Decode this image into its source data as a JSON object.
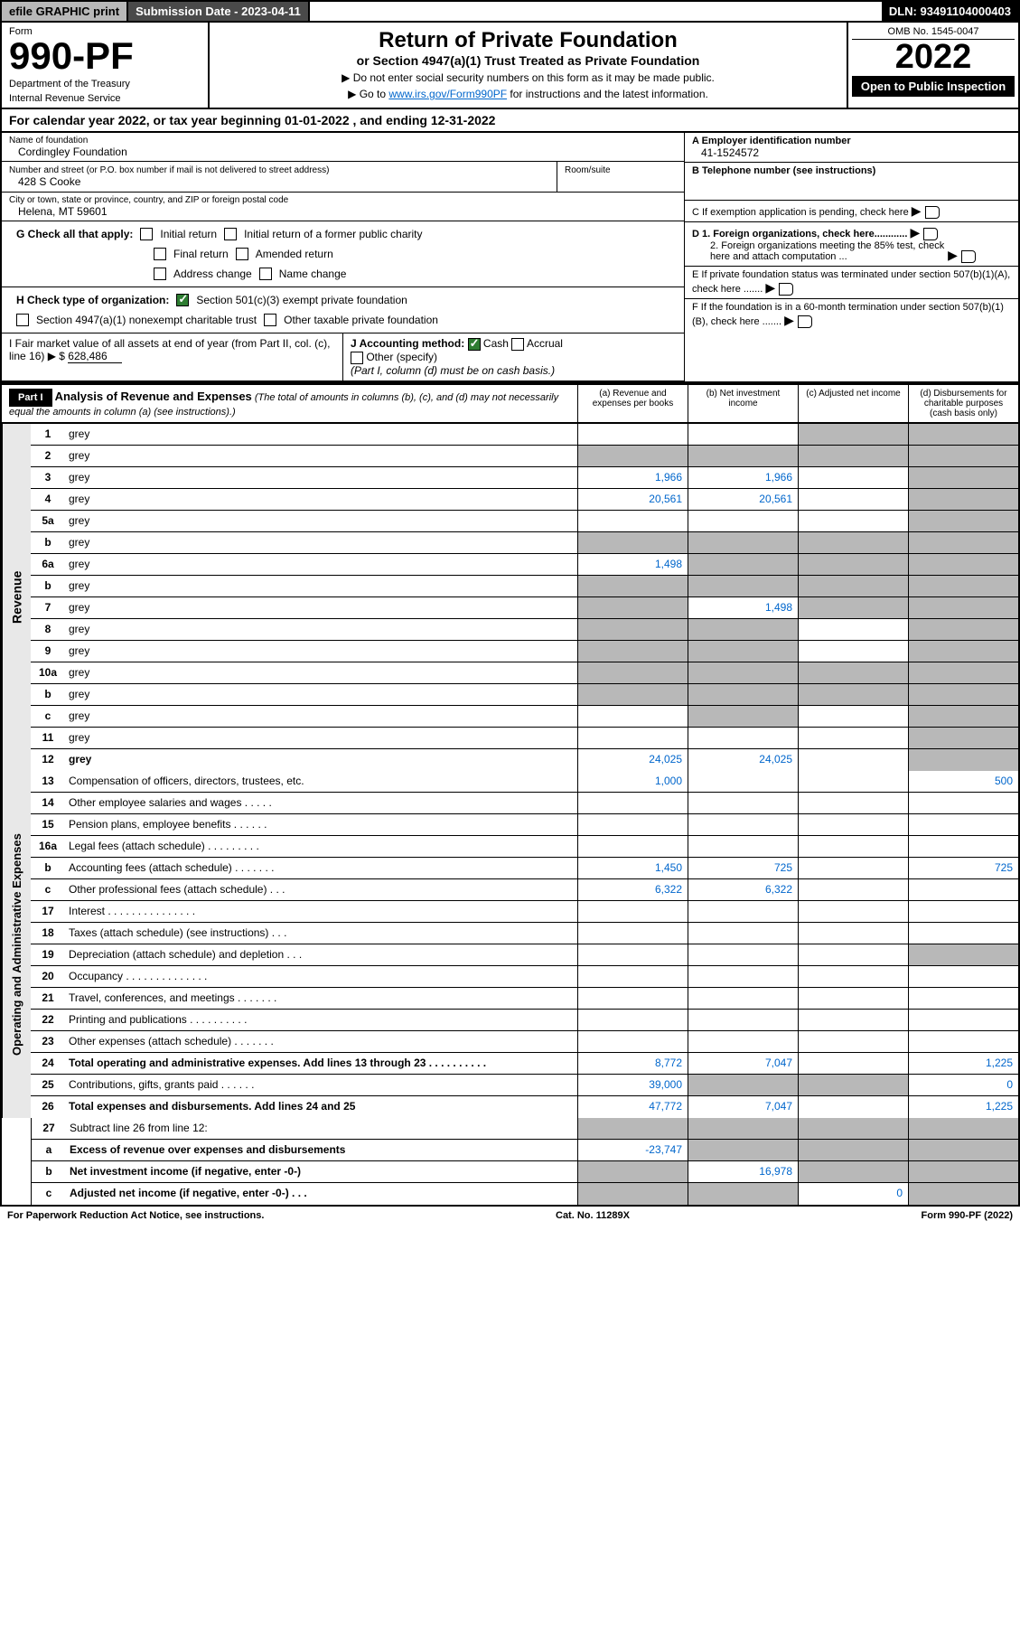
{
  "topbar": {
    "efile": "efile GRAPHIC print",
    "subdate_label": "Submission Date - 2023-04-11",
    "dln": "DLN: 93491104000403"
  },
  "header": {
    "form_label": "Form",
    "form_num": "990-PF",
    "dept1": "Department of the Treasury",
    "dept2": "Internal Revenue Service",
    "title": "Return of Private Foundation",
    "subtitle": "or Section 4947(a)(1) Trust Treated as Private Foundation",
    "note1": "▶ Do not enter social security numbers on this form as it may be made public.",
    "note2_pre": "▶ Go to ",
    "note2_link": "www.irs.gov/Form990PF",
    "note2_post": " for instructions and the latest information.",
    "omb": "OMB No. 1545-0047",
    "year": "2022",
    "inspect": "Open to Public Inspection"
  },
  "calyear": "For calendar year 2022, or tax year beginning 01-01-2022                    , and ending 12-31-2022",
  "info": {
    "name_label": "Name of foundation",
    "name": "Cordingley Foundation",
    "addr_label": "Number and street (or P.O. box number if mail is not delivered to street address)",
    "addr": "428 S Cooke",
    "room_label": "Room/suite",
    "city_label": "City or town, state or province, country, and ZIP or foreign postal code",
    "city": "Helena, MT  59601",
    "a_label": "A Employer identification number",
    "a_val": "41-1524572",
    "b_label": "B Telephone number (see instructions)",
    "c_label": "C If exemption application is pending, check here",
    "d1_label": "D 1. Foreign organizations, check here............",
    "d2_label": "2. Foreign organizations meeting the 85% test, check here and attach computation ...",
    "e_label": "E  If private foundation status was terminated under section 507(b)(1)(A), check here .......",
    "f_label": "F  If the foundation is in a 60-month termination under section 507(b)(1)(B), check here .......",
    "g_label": "G Check all that apply:",
    "g_opts": [
      "Initial return",
      "Initial return of a former public charity",
      "Final return",
      "Amended return",
      "Address change",
      "Name change"
    ],
    "h_label": "H Check type of organization:",
    "h_opt1": "Section 501(c)(3) exempt private foundation",
    "h_opt2": "Section 4947(a)(1) nonexempt charitable trust",
    "h_opt3": "Other taxable private foundation",
    "i_label": "I Fair market value of all assets at end of year (from Part II, col. (c),",
    "i_line": "line 16) ▶ $",
    "i_val": "628,486",
    "j_label": "J Accounting method:",
    "j_cash": "Cash",
    "j_accrual": "Accrual",
    "j_other": "Other (specify)",
    "j_note": "(Part I, column (d) must be on cash basis.)"
  },
  "part1": {
    "label": "Part I",
    "title": "Analysis of Revenue and Expenses",
    "note": "(The total of amounts in columns (b), (c), and (d) may not necessarily equal the amounts in column (a) (see instructions).)",
    "col_a": "(a)    Revenue and expenses per books",
    "col_b": "(b)    Net investment income",
    "col_c": "(c)    Adjusted net income",
    "col_d": "(d)    Disbursements for charitable purposes (cash basis only)"
  },
  "sides": {
    "revenue": "Revenue",
    "expenses": "Operating and Administrative Expenses"
  },
  "rows": [
    {
      "n": "1",
      "d": "grey",
      "a": "",
      "b": "",
      "c": "grey"
    },
    {
      "n": "2",
      "d": "grey",
      "a": "grey",
      "b": "grey",
      "c": "grey"
    },
    {
      "n": "3",
      "d": "grey",
      "a": "1,966",
      "b": "1,966",
      "c": ""
    },
    {
      "n": "4",
      "d": "grey",
      "a": "20,561",
      "b": "20,561",
      "c": ""
    },
    {
      "n": "5a",
      "d": "grey",
      "a": "",
      "b": "",
      "c": ""
    },
    {
      "n": "b",
      "d": "grey",
      "a": "grey",
      "b": "grey",
      "c": "grey"
    },
    {
      "n": "6a",
      "d": "grey",
      "a": "1,498",
      "b": "grey",
      "c": "grey"
    },
    {
      "n": "b",
      "d": "grey",
      "a": "grey",
      "b": "grey",
      "c": "grey"
    },
    {
      "n": "7",
      "d": "grey",
      "a": "grey",
      "b": "1,498",
      "c": "grey"
    },
    {
      "n": "8",
      "d": "grey",
      "a": "grey",
      "b": "grey",
      "c": ""
    },
    {
      "n": "9",
      "d": "grey",
      "a": "grey",
      "b": "grey",
      "c": ""
    },
    {
      "n": "10a",
      "d": "grey",
      "a": "grey",
      "b": "grey",
      "c": "grey"
    },
    {
      "n": "b",
      "d": "grey",
      "a": "grey",
      "b": "grey",
      "c": "grey"
    },
    {
      "n": "c",
      "d": "grey",
      "a": "",
      "b": "grey",
      "c": ""
    },
    {
      "n": "11",
      "d": "grey",
      "a": "",
      "b": "",
      "c": ""
    },
    {
      "n": "12",
      "d": "grey",
      "bold": true,
      "a": "24,025",
      "b": "24,025",
      "c": ""
    }
  ],
  "exp_rows": [
    {
      "n": "13",
      "d": "Compensation of officers, directors, trustees, etc.",
      "a": "1,000",
      "b": "",
      "c": "",
      "dd": "500"
    },
    {
      "n": "14",
      "d": "Other employee salaries and wages     .   .   .   .   .",
      "a": "",
      "b": "",
      "c": "",
      "dd": ""
    },
    {
      "n": "15",
      "d": "Pension plans, employee benefits  .   .   .   .   .   .",
      "a": "",
      "b": "",
      "c": "",
      "dd": ""
    },
    {
      "n": "16a",
      "d": "Legal fees (attach schedule) .   .   .   .   .   .   .   .   .",
      "a": "",
      "b": "",
      "c": "",
      "dd": ""
    },
    {
      "n": "b",
      "d": "Accounting fees (attach schedule) .   .   .   .   .   .   .",
      "a": "1,450",
      "b": "725",
      "c": "",
      "dd": "725"
    },
    {
      "n": "c",
      "d": "Other professional fees (attach schedule)     .   .   .",
      "a": "6,322",
      "b": "6,322",
      "c": "",
      "dd": ""
    },
    {
      "n": "17",
      "d": "Interest  .   .   .   .   .   .   .   .   .   .   .   .   .   .   .",
      "a": "",
      "b": "",
      "c": "",
      "dd": ""
    },
    {
      "n": "18",
      "d": "Taxes (attach schedule) (see instructions)      .   .   .",
      "a": "",
      "b": "",
      "c": "",
      "dd": ""
    },
    {
      "n": "19",
      "d": "Depreciation (attach schedule) and depletion    .   .   .",
      "a": "",
      "b": "",
      "c": "",
      "dd": "grey"
    },
    {
      "n": "20",
      "d": "Occupancy .   .   .   .   .   .   .   .   .   .   .   .   .   .",
      "a": "",
      "b": "",
      "c": "",
      "dd": ""
    },
    {
      "n": "21",
      "d": "Travel, conferences, and meetings .   .   .   .   .   .   .",
      "a": "",
      "b": "",
      "c": "",
      "dd": ""
    },
    {
      "n": "22",
      "d": "Printing and publications .   .   .   .   .   .   .   .   .   .",
      "a": "",
      "b": "",
      "c": "",
      "dd": ""
    },
    {
      "n": "23",
      "d": "Other expenses (attach schedule)  .   .   .   .   .   .   .",
      "a": "",
      "b": "",
      "c": "",
      "dd": ""
    },
    {
      "n": "24",
      "d": "Total operating and administrative expenses. Add lines 13 through 23   .   .   .   .   .   .   .   .   .   .",
      "bold": true,
      "a": "8,772",
      "b": "7,047",
      "c": "",
      "dd": "1,225"
    },
    {
      "n": "25",
      "d": "Contributions, gifts, grants paid     .   .   .   .   .   .",
      "a": "39,000",
      "b": "grey",
      "c": "grey",
      "dd": "0"
    },
    {
      "n": "26",
      "d": "Total expenses and disbursements. Add lines 24 and 25",
      "bold": true,
      "a": "47,772",
      "b": "7,047",
      "c": "",
      "dd": "1,225"
    }
  ],
  "bottom_rows": [
    {
      "n": "27",
      "d": "Subtract line 26 from line 12:",
      "a": "grey",
      "b": "grey",
      "c": "grey",
      "dd": "grey"
    },
    {
      "n": "a",
      "d": "Excess of revenue over expenses and disbursements",
      "bold": true,
      "a": "-23,747",
      "b": "grey",
      "c": "grey",
      "dd": "grey"
    },
    {
      "n": "b",
      "d": "Net investment income (if negative, enter -0-)",
      "bold": true,
      "a": "grey",
      "b": "16,978",
      "c": "grey",
      "dd": "grey"
    },
    {
      "n": "c",
      "d": "Adjusted net income (if negative, enter -0-)   .   .   .",
      "bold": true,
      "a": "grey",
      "b": "grey",
      "c": "0",
      "dd": "grey"
    }
  ],
  "footer": {
    "left": "For Paperwork Reduction Act Notice, see instructions.",
    "mid": "Cat. No. 11289X",
    "right": "Form 990-PF (2022)"
  },
  "colors": {
    "link": "#0066cc",
    "grey": "#b8b8b8",
    "dark": "#4a4a4a",
    "green": "#2e7d32"
  }
}
